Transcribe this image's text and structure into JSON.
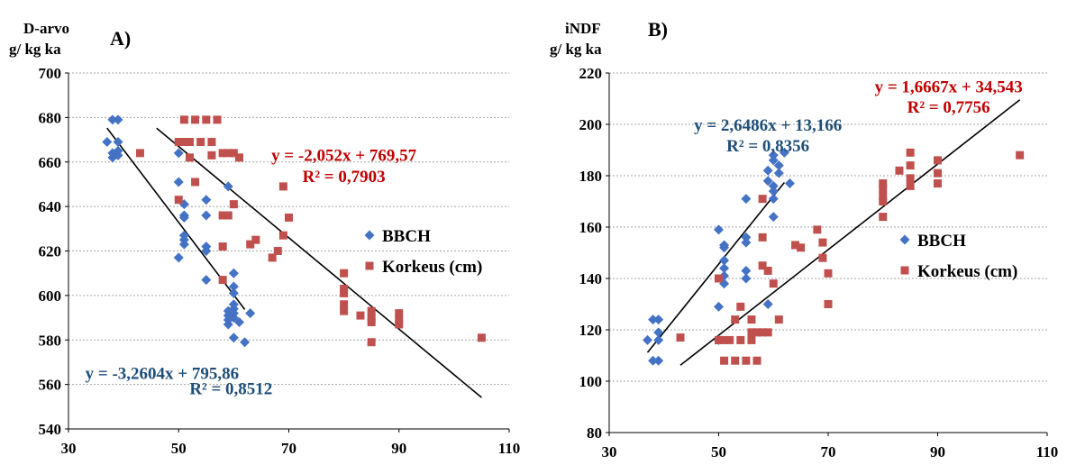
{
  "chart_data": [
    {
      "type": "scatter",
      "panel_label": "A)",
      "title": "",
      "ylabel_lines": [
        "D-arvo",
        "g/ kg ka"
      ],
      "xlabel": "",
      "xlim": [
        30,
        110
      ],
      "ylim": [
        540,
        700
      ],
      "xticks": [
        30,
        50,
        70,
        90,
        110
      ],
      "yticks": [
        540,
        560,
        580,
        600,
        620,
        640,
        660,
        680,
        700
      ],
      "grid": "horizontal",
      "legend_position": "right",
      "series": [
        {
          "name": "BBCH",
          "marker": "diamond",
          "color": "#4472c4",
          "points": [
            [
              37,
              669
            ],
            [
              38,
              679
            ],
            [
              39,
              679
            ],
            [
              38,
              662
            ],
            [
              39,
              663
            ],
            [
              38,
              664
            ],
            [
              39,
              665
            ],
            [
              39,
              669
            ],
            [
              50,
              664
            ],
            [
              50,
              651
            ],
            [
              50,
              617
            ],
            [
              51,
              641
            ],
            [
              51,
              636
            ],
            [
              51,
              635
            ],
            [
              51,
              627
            ],
            [
              51,
              625
            ],
            [
              51,
              623
            ],
            [
              55,
              643
            ],
            [
              55,
              636
            ],
            [
              55,
              622
            ],
            [
              55,
              620
            ],
            [
              55,
              607
            ],
            [
              59,
              649
            ],
            [
              59,
              593
            ],
            [
              59,
              591
            ],
            [
              59,
              589
            ],
            [
              59,
              587
            ],
            [
              60,
              610
            ],
            [
              60,
              604
            ],
            [
              60,
              601
            ],
            [
              60,
              596
            ],
            [
              60,
              594
            ],
            [
              60,
              592
            ],
            [
              60,
              590
            ],
            [
              60,
              581
            ],
            [
              61,
              588
            ],
            [
              62,
              579
            ],
            [
              63,
              592
            ]
          ]
        },
        {
          "name": "Korkeus (cm)",
          "marker": "square",
          "color": "#c0504d",
          "points": [
            [
              43,
              664
            ],
            [
              50,
              669
            ],
            [
              50,
              643
            ],
            [
              51,
              669
            ],
            [
              51,
              679
            ],
            [
              52,
              669
            ],
            [
              52,
              662
            ],
            [
              53,
              679
            ],
            [
              53,
              651
            ],
            [
              54,
              669
            ],
            [
              55,
              679
            ],
            [
              56,
              663
            ],
            [
              56,
              669
            ],
            [
              57,
              679
            ],
            [
              58,
              664
            ],
            [
              58,
              636
            ],
            [
              58,
              622
            ],
            [
              58,
              607
            ],
            [
              59,
              664
            ],
            [
              59,
              636
            ],
            [
              60,
              664
            ],
            [
              60,
              641
            ],
            [
              61,
              662
            ],
            [
              63,
              623
            ],
            [
              64,
              625
            ],
            [
              67,
              617
            ],
            [
              68,
              620
            ],
            [
              69,
              627
            ],
            [
              69,
              649
            ],
            [
              70,
              635
            ],
            [
              80,
              610
            ],
            [
              80,
              603
            ],
            [
              80,
              601
            ],
            [
              80,
              596
            ],
            [
              80,
              593
            ],
            [
              83,
              591
            ],
            [
              85,
              593
            ],
            [
              85,
              590
            ],
            [
              85,
              588
            ],
            [
              85,
              579
            ],
            [
              90,
              592
            ],
            [
              90,
              589
            ],
            [
              90,
              587
            ],
            [
              105,
              581
            ]
          ]
        }
      ],
      "trendlines": [
        {
          "series": "BBCH",
          "equation": "y = -3,2604x + 795,86",
          "r2": "R² = 0,8512",
          "slope": -3.2604,
          "intercept": 795.86,
          "x_range": [
            37,
            62
          ],
          "color": "#1f4e79"
        },
        {
          "series": "Korkeus (cm)",
          "equation": "y = -2,052x + 769,57",
          "r2": "R² = 0,7903",
          "slope": -2.052,
          "intercept": 769.57,
          "x_range": [
            46,
            105
          ],
          "color": "#c00000"
        }
      ],
      "annotations": [
        {
          "text": "y = -3,2604x + 795,86",
          "color": "#1f4e79",
          "anchor": [
            47,
            562.5
          ]
        },
        {
          "text": "R² = 0,8512",
          "color": "#1f4e79",
          "anchor": [
            59.5,
            555.5
          ]
        },
        {
          "text": "y = -2,052x + 769,57",
          "color": "#c00000",
          "anchor": [
            80,
            660.5
          ]
        },
        {
          "text": "R² = 0,7903",
          "color": "#c00000",
          "anchor": [
            80,
            651
          ]
        }
      ],
      "legend": [
        {
          "label": "BBCH",
          "marker": "diamond",
          "color": "#4472c4"
        },
        {
          "label": "Korkeus (cm)",
          "marker": "square",
          "color": "#c0504d"
        }
      ]
    },
    {
      "type": "scatter",
      "panel_label": "B)",
      "title": "",
      "ylabel_lines": [
        "iNDF",
        "g/ kg ka"
      ],
      "xlabel": "",
      "xlim": [
        30,
        110
      ],
      "ylim": [
        80,
        220
      ],
      "xticks": [
        30,
        50,
        70,
        90,
        110
      ],
      "yticks": [
        80,
        100,
        120,
        140,
        160,
        180,
        200,
        220
      ],
      "grid": "horizontal",
      "legend_position": "right",
      "series": [
        {
          "name": "BBCH",
          "marker": "diamond",
          "color": "#4472c4",
          "points": [
            [
              37,
              116
            ],
            [
              38,
              124
            ],
            [
              38,
              108
            ],
            [
              39,
              124
            ],
            [
              39,
              119
            ],
            [
              39,
              116
            ],
            [
              39,
              108
            ],
            [
              50,
              159
            ],
            [
              50,
              129
            ],
            [
              50,
              116
            ],
            [
              51,
              153
            ],
            [
              51,
              152
            ],
            [
              51,
              147
            ],
            [
              51,
              144
            ],
            [
              51,
              141
            ],
            [
              51,
              138
            ],
            [
              55,
              171
            ],
            [
              55,
              156
            ],
            [
              55,
              154
            ],
            [
              55,
              143
            ],
            [
              55,
              140
            ],
            [
              59,
              182
            ],
            [
              59,
              178
            ],
            [
              59,
              130
            ],
            [
              60,
              188
            ],
            [
              60,
              186
            ],
            [
              60,
              176
            ],
            [
              60,
              174
            ],
            [
              60,
              171
            ],
            [
              60,
              164
            ],
            [
              61,
              184
            ],
            [
              61,
              181
            ],
            [
              62,
              189
            ],
            [
              63,
              177
            ]
          ]
        },
        {
          "name": "Korkeus (cm)",
          "marker": "square",
          "color": "#c0504d",
          "points": [
            [
              43,
              117
            ],
            [
              50,
              116
            ],
            [
              50,
              140
            ],
            [
              51,
              116
            ],
            [
              51,
              108
            ],
            [
              52,
              116
            ],
            [
              53,
              124
            ],
            [
              53,
              108
            ],
            [
              54,
              129
            ],
            [
              54,
              116
            ],
            [
              55,
              108
            ],
            [
              56,
              124
            ],
            [
              56,
              119
            ],
            [
              56,
              116
            ],
            [
              57,
              119
            ],
            [
              57,
              108
            ],
            [
              58,
              145
            ],
            [
              58,
              156
            ],
            [
              58,
              171
            ],
            [
              58,
              119
            ],
            [
              59,
              143
            ],
            [
              59,
              119
            ],
            [
              60,
              138
            ],
            [
              61,
              124
            ],
            [
              64,
              153
            ],
            [
              65,
              152
            ],
            [
              68,
              159
            ],
            [
              69,
              154
            ],
            [
              69,
              148
            ],
            [
              70,
              142
            ],
            [
              70,
              130
            ],
            [
              80,
              177
            ],
            [
              80,
              175
            ],
            [
              80,
              172
            ],
            [
              80,
              170
            ],
            [
              80,
              164
            ],
            [
              83,
              182
            ],
            [
              85,
              189
            ],
            [
              85,
              184
            ],
            [
              85,
              179
            ],
            [
              85,
              176
            ],
            [
              90,
              186
            ],
            [
              90,
              181
            ],
            [
              90,
              177
            ],
            [
              105,
              188
            ]
          ]
        }
      ],
      "trendlines": [
        {
          "series": "BBCH",
          "equation": "y = 2,6486x + 13,166",
          "r2": "R² = 0,8356",
          "slope": 2.6486,
          "intercept": 13.166,
          "x_range": [
            37,
            62
          ],
          "color": "#1f4e79"
        },
        {
          "series": "Korkeus (cm)",
          "equation": "y = 1,6667x + 34,543",
          "r2": "R² = 0,7756",
          "slope": 1.6667,
          "intercept": 34.543,
          "x_range": [
            43,
            105
          ],
          "color": "#c00000"
        }
      ],
      "annotations": [
        {
          "text": "y = 2,6486x + 13,166",
          "color": "#1f4e79",
          "anchor": [
            59,
            197.5
          ]
        },
        {
          "text": "R² = 0,8356",
          "color": "#1f4e79",
          "anchor": [
            59,
            189.5
          ]
        },
        {
          "text": "y = 1,6667x + 34,543",
          "color": "#c00000",
          "anchor": [
            92,
            212.5
          ]
        },
        {
          "text": "R² = 0,7756",
          "color": "#c00000",
          "anchor": [
            92,
            204.5
          ]
        }
      ],
      "legend": [
        {
          "label": "BBCH",
          "marker": "diamond",
          "color": "#4472c4"
        },
        {
          "label": "Korkeus (cm)",
          "marker": "square",
          "color": "#c0504d"
        }
      ]
    }
  ]
}
